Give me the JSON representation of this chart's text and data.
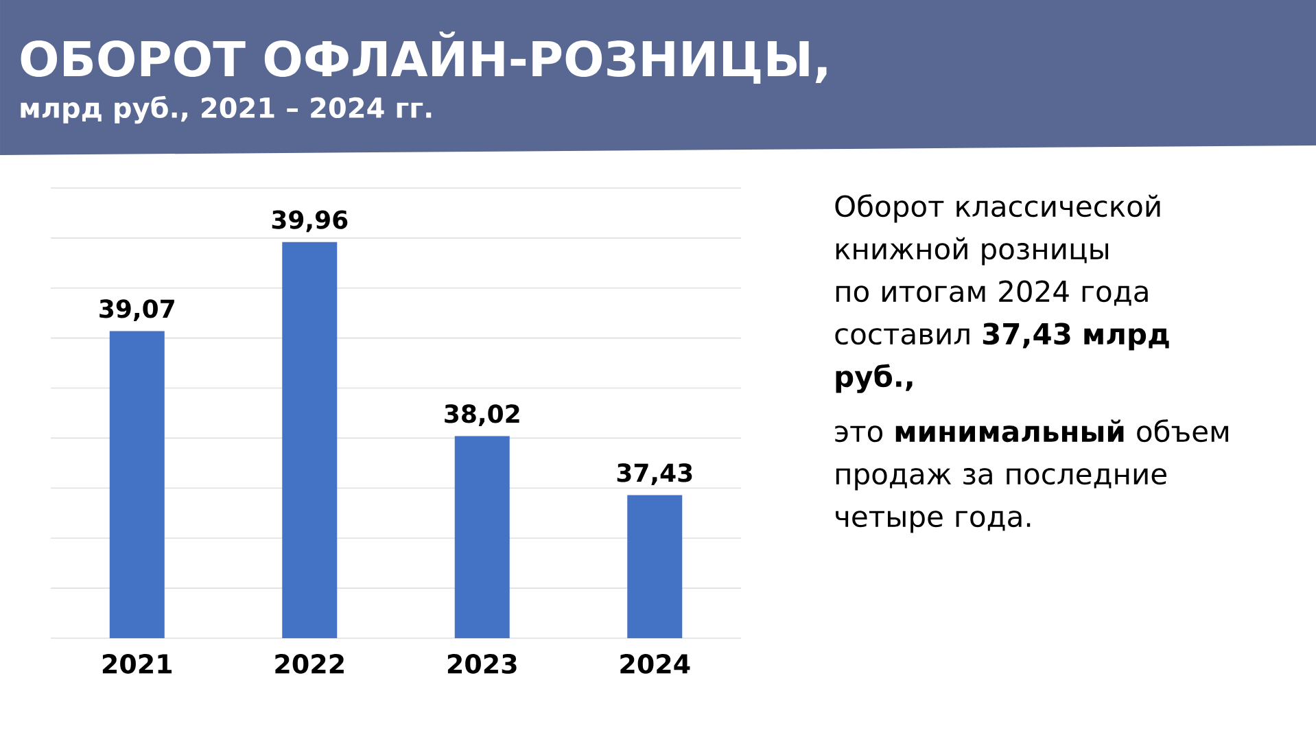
{
  "chart_data": {
    "type": "bar",
    "title": "ОБОРОТ ОФЛАЙН-РОЗНИЦЫ,",
    "subtitle": "млрд руб., 2021 – 2024 гг.",
    "categories": [
      "2021",
      "2022",
      "2023",
      "2024"
    ],
    "values": [
      39.07,
      39.96,
      38.02,
      37.43
    ],
    "value_labels": [
      "39,07",
      "39,96",
      "38,02",
      "37,43"
    ],
    "color": "#4472c4",
    "ylim": [
      36,
      40.5
    ],
    "yticks": [
      {
        "value": 36,
        "label": null
      },
      {
        "value": 36.5,
        "label": null
      },
      {
        "value": 37,
        "label": null
      },
      {
        "value": 37.5,
        "label": null
      },
      {
        "value": 38,
        "label": null
      },
      {
        "value": 38.5,
        "label": null
      },
      {
        "value": 39,
        "label": null
      },
      {
        "value": 39.5,
        "label": null
      },
      {
        "value": 40,
        "label": null
      },
      {
        "value": 40.5,
        "label": null
      }
    ],
    "grid": "y",
    "tick_labels": "x",
    "annotations": [
      "Оборот классической книжной розницы по итогам 2024 года составил **37,43 млрд руб.,**",
      "это **минимальный** объем продаж за последние четыре года."
    ]
  }
}
